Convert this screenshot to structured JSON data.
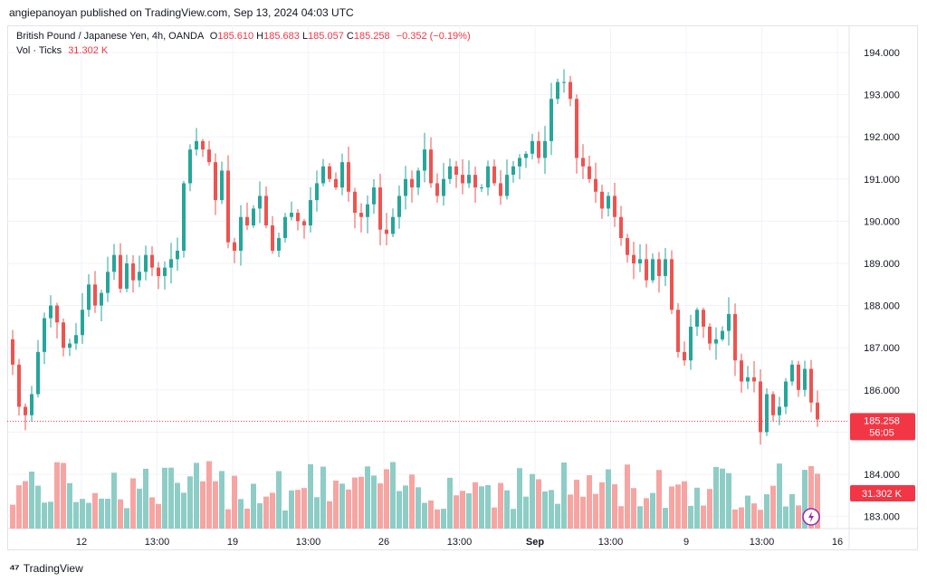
{
  "header": {
    "published_line": "angiepanoyan published on TradingView.com, Sep 13, 2024 04:03 UTC"
  },
  "legend": {
    "symbol": "British Pound / Japanese Yen, 4h, OANDA",
    "open_label": "O",
    "open": "185.610",
    "high_label": "H",
    "high": "185.683",
    "low_label": "L",
    "low": "185.057",
    "close_label": "C",
    "close": "185.258",
    "change": "−0.352 (−0.19%)",
    "vol_label": "Vol · Ticks",
    "vol_value": "31.302 K"
  },
  "footer": {
    "logo_mark": "⁴⁷",
    "brand": "TradingView"
  },
  "colors": {
    "up": "#26a69a",
    "down": "#ef5350",
    "vol_up": "#8ecdc6",
    "vol_down": "#f6a5a2",
    "price_tag": "#f23645",
    "grid": "#f0f3fa"
  },
  "chart_data": {
    "type": "candlestick",
    "x_ticks": [
      "12",
      "13:00",
      "19",
      "13:00",
      "26",
      "13:00",
      "Sep",
      "13:00",
      "9",
      "13:00",
      "16"
    ],
    "y_ticks": [
      "194.000",
      "193.000",
      "192.000",
      "191.000",
      "190.000",
      "189.000",
      "188.000",
      "187.000",
      "186.000",
      "185.000",
      "184.000",
      "183.000"
    ],
    "ylim": [
      182.75,
      194.55
    ],
    "last_price": "185.258",
    "countdown": "56:05",
    "last_volume": "31.302 K",
    "close_prices": [
      186.6,
      185.6,
      185.4,
      185.9,
      186.9,
      187.7,
      188.0,
      187.6,
      187.0,
      187.1,
      187.3,
      187.9,
      188.5,
      188.0,
      188.3,
      188.8,
      189.2,
      188.4,
      189.0,
      188.6,
      188.8,
      189.2,
      188.9,
      188.7,
      188.9,
      189.1,
      189.3,
      190.9,
      191.7,
      191.9,
      191.7,
      191.4,
      190.5,
      191.2,
      189.5,
      189.3,
      190.1,
      189.9,
      190.3,
      190.6,
      189.9,
      189.3,
      189.6,
      190.1,
      190.2,
      190.0,
      189.9,
      190.5,
      190.9,
      191.3,
      191.0,
      190.8,
      191.4,
      190.7,
      190.2,
      190.1,
      190.4,
      190.8,
      189.8,
      189.7,
      190.1,
      190.6,
      191.0,
      190.8,
      191.2,
      191.7,
      190.9,
      190.6,
      191.0,
      191.3,
      191.1,
      190.9,
      191.1,
      190.8,
      190.8,
      191.3,
      190.9,
      190.6,
      191.1,
      191.3,
      191.5,
      191.6,
      191.9,
      191.5,
      191.9,
      192.9,
      193.3,
      193.3,
      192.9,
      191.5,
      191.3,
      191.0,
      190.7,
      190.3,
      190.6,
      190.1,
      189.6,
      189.2,
      189.0,
      189.1,
      188.6,
      189.1,
      188.7,
      189.1,
      187.9,
      186.9,
      186.7,
      187.5,
      187.9,
      187.5,
      187.1,
      187.2,
      187.4,
      187.8,
      186.7,
      186.2,
      186.3,
      186.2,
      185.0,
      185.9,
      185.4,
      185.6,
      186.2,
      186.6,
      186.0,
      186.5,
      185.7,
      185.3
    ]
  }
}
